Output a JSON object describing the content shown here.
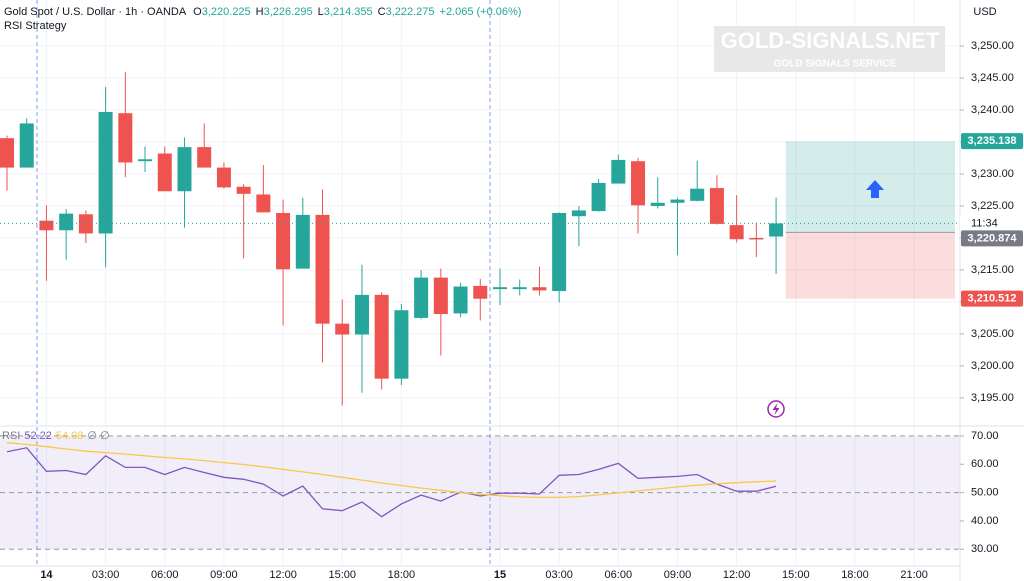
{
  "chart_data": [
    {
      "type": "candlestick",
      "header": {
        "title": "Gold Spot / U.S. Dollar · 1h · OANDA",
        "fields": [
          {
            "key": "O",
            "value": 3220.225,
            "label": "3,220.225"
          },
          {
            "key": "H",
            "value": 3226.295,
            "label": "3,226.295"
          },
          {
            "key": "L",
            "value": 3214.355,
            "label": "3,214.355"
          },
          {
            "key": "C",
            "value": 3222.275,
            "label": "3,222.275"
          }
        ],
        "change": "+2.065 (+0.06%)",
        "indicator": "RSI Strategy"
      },
      "currency": "USD",
      "watermark": {
        "title": "GOLD-SIGNALS.NET",
        "subtitle": "GOLD SIGNALS SERVICE"
      },
      "categories": [
        null,
        null,
        "14",
        null,
        null,
        "03:00",
        null,
        null,
        "06:00",
        null,
        null,
        "09:00",
        null,
        null,
        "12:00",
        null,
        null,
        "15:00",
        null,
        null,
        "18:00",
        null,
        null,
        null,
        null,
        "15",
        null,
        null,
        "03:00",
        null,
        null,
        "06:00",
        null,
        null,
        "09:00",
        null,
        null,
        "12:00",
        null,
        null,
        "15:00",
        null,
        null,
        "18:00",
        null,
        null,
        "21:00",
        null,
        null
      ],
      "open": [
        3235.6,
        3231.0,
        3222.7,
        3221.2,
        3223.7,
        3220.7,
        3239.5,
        3232.0,
        3233.2,
        3227.3,
        3234.2,
        3231.0,
        3228.0,
        3226.8,
        3223.9,
        3215.2,
        3223.6,
        3206.6,
        3204.9,
        3211.1,
        3198.0,
        3207.5,
        3213.8,
        3208.2,
        3212.5,
        3212.0,
        3212.0,
        3212.3,
        3211.7,
        3223.4,
        3224.2,
        3228.5,
        3232.0,
        3225.0,
        3225.5,
        3225.8,
        3227.8,
        3222.0,
        3220.0,
        3220.225,
        null,
        null,
        null,
        null,
        null,
        null,
        null,
        null,
        null
      ],
      "high": [
        3236.0,
        3238.7,
        3225.1,
        3224.5,
        3224.3,
        3243.6,
        3245.9,
        3234.3,
        3234.3,
        3235.7,
        3237.9,
        3231.8,
        3228.4,
        3231.4,
        3226.0,
        3226.3,
        3227.6,
        3210.4,
        3215.8,
        3211.5,
        3209.7,
        3215.0,
        3215.2,
        3213.0,
        3213.6,
        3215.2,
        3213.5,
        3215.5,
        3224.0,
        3225.0,
        3229.2,
        3233.0,
        3232.5,
        3229.5,
        3226.3,
        3232.1,
        3229.8,
        3226.7,
        3222.4,
        3226.295,
        null,
        null,
        null,
        null,
        null,
        null,
        null,
        null,
        null
      ],
      "low": [
        3227.4,
        3231.0,
        3213.3,
        3216.6,
        3219.2,
        3215.4,
        3229.5,
        3230.3,
        3227.3,
        3221.6,
        3231.0,
        3227.7,
        3216.8,
        3224.0,
        3206.3,
        3215.2,
        3200.5,
        3193.8,
        3195.8,
        3196.3,
        3197.0,
        3207.3,
        3201.6,
        3207.6,
        3207.1,
        3209.5,
        3211.0,
        3211.0,
        3209.9,
        3218.7,
        3224.1,
        3228.5,
        3220.7,
        3224.6,
        3217.3,
        3225.7,
        3222.1,
        3219.3,
        3217.0,
        3214.355,
        null,
        null,
        null,
        null,
        null,
        null,
        null,
        null,
        null
      ],
      "close": [
        3231.0,
        3237.9,
        3221.2,
        3223.8,
        3220.7,
        3239.7,
        3231.8,
        3232.3,
        3227.3,
        3234.2,
        3231.0,
        3227.9,
        3226.9,
        3224.0,
        3215.1,
        3223.6,
        3206.6,
        3204.9,
        3211.1,
        3198.0,
        3208.7,
        3213.8,
        3208.1,
        3212.4,
        3210.5,
        3212.3,
        3212.3,
        3211.8,
        3223.9,
        3224.3,
        3228.6,
        3232.2,
        3225.1,
        3225.5,
        3226.0,
        3227.7,
        3222.2,
        3219.8,
        3220.0,
        3222.275,
        null,
        null,
        null,
        null,
        null,
        null,
        null,
        null,
        null
      ],
      "up_color": "#26a69a",
      "down_color": "#ef5350",
      "ylim": [
        3190.6,
        3257.2
      ],
      "yticks": [
        {
          "value": 3195,
          "label": "3,195.00"
        },
        {
          "value": 3200,
          "label": "3,200.00"
        },
        {
          "value": 3205,
          "label": "3,205.00"
        },
        {
          "value": 3210,
          "label": "3,210.00"
        },
        {
          "value": 3215,
          "label": "3,215.00"
        },
        {
          "value": 3220,
          "label": "3,220.00"
        },
        {
          "value": 3225,
          "label": "3,225.00"
        },
        {
          "value": 3230,
          "label": "3,230.00"
        },
        {
          "value": 3235,
          "label": "3,235.00"
        },
        {
          "value": 3240,
          "label": "3,240.00"
        },
        {
          "value": 3245,
          "label": "3,245.00"
        },
        {
          "value": 3250,
          "label": "3,250.00"
        }
      ],
      "grid": true,
      "countdown": "11:34",
      "position": {
        "target": {
          "value": 3235.138,
          "label": "3,235.138"
        },
        "entry": {
          "value": 3220.874,
          "label": "3,220.874"
        },
        "stop": {
          "value": 3210.512,
          "label": "3,210.512"
        }
      }
    },
    {
      "type": "line",
      "series": [
        {
          "name": "RSI",
          "color": "#7e57c2",
          "values": [
            64.4,
            65.8,
            57.5,
            57.8,
            56.4,
            63.0,
            58.9,
            58.9,
            56.4,
            58.9,
            57.1,
            55.4,
            54.7,
            53.0,
            48.8,
            52.3,
            44.3,
            43.6,
            46.7,
            41.5,
            46.0,
            49.1,
            47.0,
            50.2,
            48.8,
            49.8,
            49.8,
            49.5,
            56.1,
            56.4,
            58.2,
            60.3,
            55.0,
            55.4,
            55.7,
            56.4,
            53.0,
            50.5,
            50.5,
            52.22,
            null,
            null,
            null,
            null,
            null,
            null,
            null,
            null,
            null
          ]
        },
        {
          "color": "#f7c948",
          "values": [
            67.6,
            67.0,
            66.2,
            65.4,
            64.6,
            64.1,
            63.6,
            63.0,
            62.4,
            61.9,
            61.3,
            60.6,
            59.9,
            59.1,
            58.2,
            57.3,
            56.4,
            55.4,
            54.4,
            53.4,
            52.5,
            51.6,
            50.8,
            50.0,
            49.4,
            48.9,
            48.5,
            48.3,
            48.3,
            48.6,
            49.2,
            49.9,
            50.6,
            51.3,
            52.0,
            52.6,
            53.1,
            53.5,
            53.8,
            54.08,
            null,
            null,
            null,
            null,
            null,
            null,
            null,
            null,
            null
          ]
        }
      ],
      "legend_tail": "∅ ∅",
      "band": [
        30,
        70
      ],
      "midline": 50,
      "ylim": [
        24.1,
        73.5
      ],
      "yticks": [
        {
          "value": 30,
          "label": "30.00"
        },
        {
          "value": 40,
          "label": "40.00"
        },
        {
          "value": 50,
          "label": "50.00"
        },
        {
          "value": 60,
          "label": "60.00"
        },
        {
          "value": 70,
          "label": "70.00"
        }
      ]
    }
  ]
}
